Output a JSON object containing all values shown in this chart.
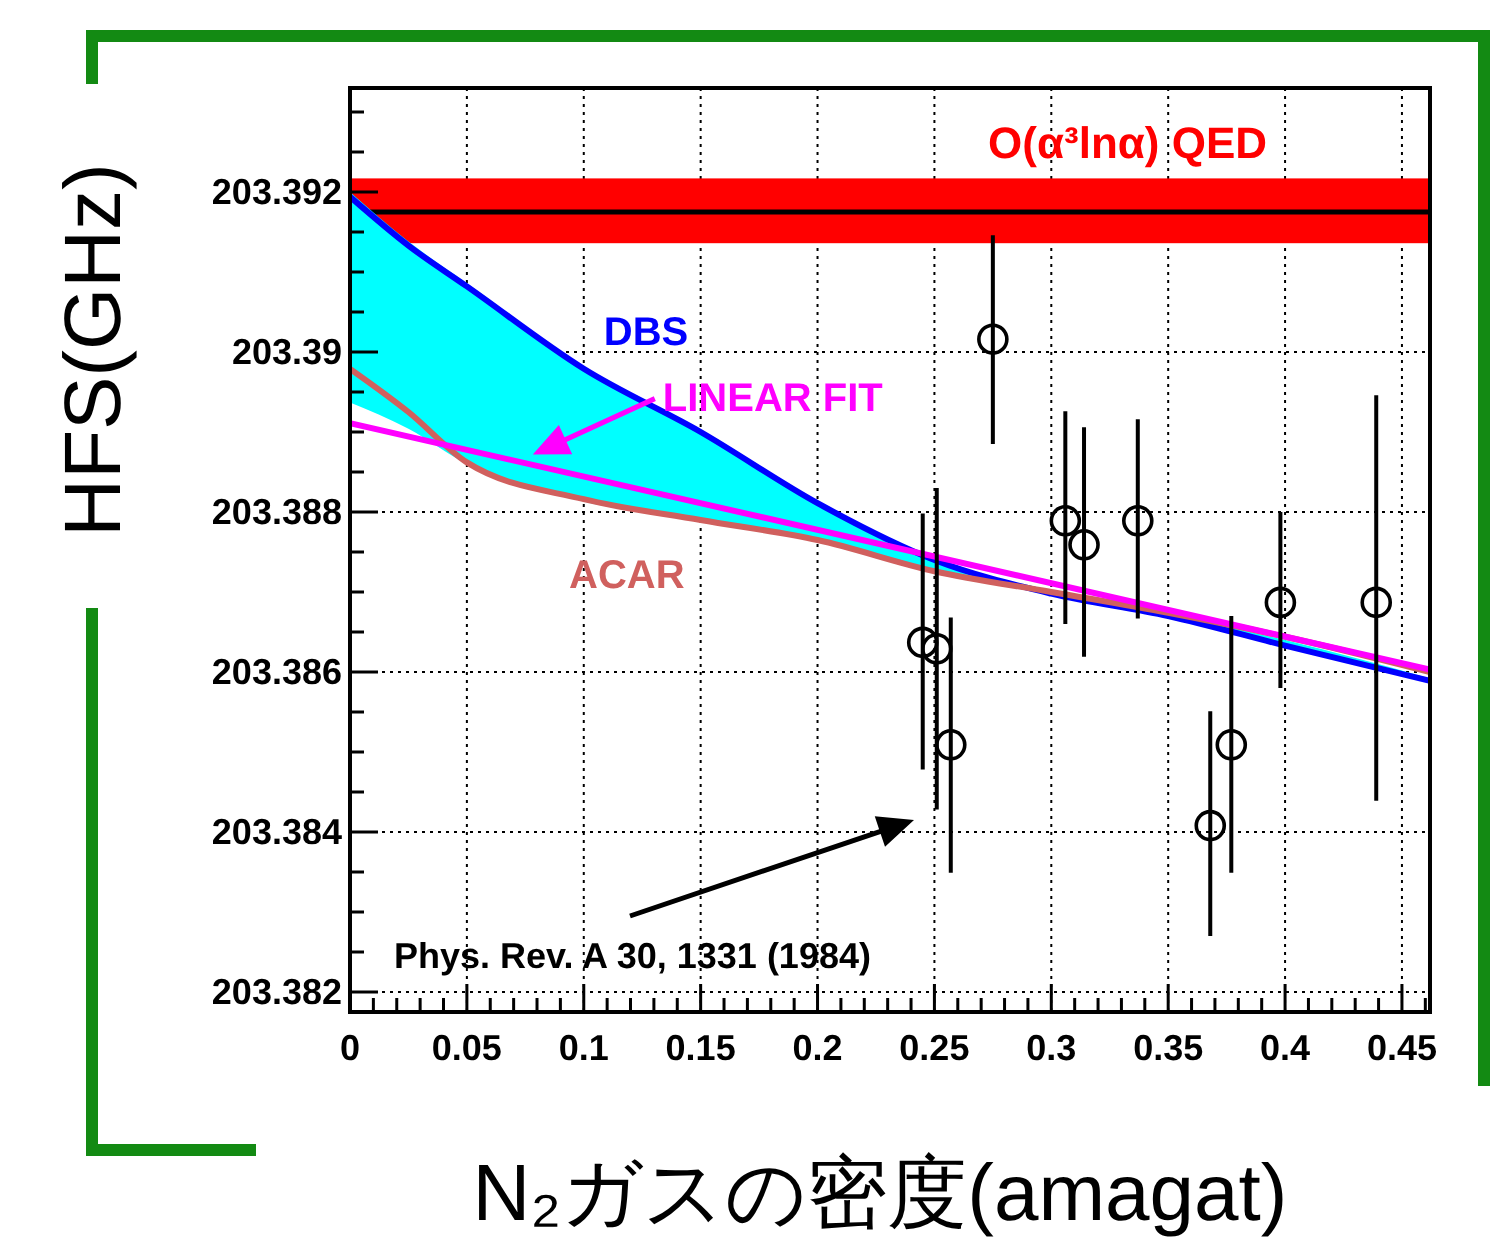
{
  "chart_data": {
    "type": "scatter",
    "xlabel": "N₂ガスの密度(amagat)",
    "ylabel": "HFS(GHz)",
    "xlim": [
      0,
      0.462
    ],
    "ylim": [
      203.38175,
      203.3933
    ],
    "xticks": [
      0,
      {
        "value": 0.01,
        "label": null
      },
      {
        "value": 0.02,
        "label": null
      },
      {
        "value": 0.03,
        "label": null
      },
      {
        "value": 0.04,
        "label": null
      },
      0.05,
      {
        "value": 0.06,
        "label": null
      },
      {
        "value": 0.07,
        "label": null
      },
      {
        "value": 0.08,
        "label": null
      },
      {
        "value": 0.09,
        "label": null
      },
      0.1,
      {
        "value": 0.11,
        "label": null
      },
      {
        "value": 0.12,
        "label": null
      },
      {
        "value": 0.13,
        "label": null
      },
      {
        "value": 0.14,
        "label": null
      },
      0.15,
      {
        "value": 0.16,
        "label": null
      },
      {
        "value": 0.17,
        "label": null
      },
      {
        "value": 0.18,
        "label": null
      },
      {
        "value": 0.19,
        "label": null
      },
      0.2,
      {
        "value": 0.21,
        "label": null
      },
      {
        "value": 0.22,
        "label": null
      },
      {
        "value": 0.23,
        "label": null
      },
      {
        "value": 0.24,
        "label": null
      },
      0.25,
      {
        "value": 0.26,
        "label": null
      },
      {
        "value": 0.27,
        "label": null
      },
      {
        "value": 0.28,
        "label": null
      },
      {
        "value": 0.29,
        "label": null
      },
      0.3,
      {
        "value": 0.31,
        "label": null
      },
      {
        "value": 0.32,
        "label": null
      },
      {
        "value": 0.33,
        "label": null
      },
      {
        "value": 0.34,
        "label": null
      },
      0.35,
      {
        "value": 0.36,
        "label": null
      },
      {
        "value": 0.37,
        "label": null
      },
      {
        "value": 0.38,
        "label": null
      },
      {
        "value": 0.39,
        "label": null
      },
      0.4,
      {
        "value": 0.41,
        "label": null
      },
      {
        "value": 0.42,
        "label": null
      },
      {
        "value": 0.43,
        "label": null
      },
      {
        "value": 0.44,
        "label": null
      },
      0.45,
      {
        "value": 0.46,
        "label": null
      }
    ],
    "yticks": [
      203.382,
      {
        "value": 203.3825,
        "label": null
      },
      {
        "value": 203.383,
        "label": null
      },
      {
        "value": 203.3835,
        "label": null
      },
      203.384,
      {
        "value": 203.3845,
        "label": null
      },
      {
        "value": 203.385,
        "label": null
      },
      {
        "value": 203.3855,
        "label": null
      },
      203.386,
      {
        "value": 203.3865,
        "label": null
      },
      {
        "value": 203.387,
        "label": null
      },
      {
        "value": 203.3875,
        "label": null
      },
      203.388,
      {
        "value": 203.3885,
        "label": null
      },
      {
        "value": 203.389,
        "label": null
      },
      {
        "value": 203.3895,
        "label": null
      },
      203.39,
      {
        "value": 203.3905,
        "label": null
      },
      {
        "value": 203.391,
        "label": null
      },
      {
        "value": 203.3915,
        "label": null
      },
      203.392,
      {
        "value": 203.3925,
        "label": null
      },
      {
        "value": 203.393,
        "label": null
      }
    ],
    "grid": true,
    "bands": [
      {
        "axis": "y",
        "from": 203.39136,
        "to": 203.39217,
        "label": "O(α³lnα) QED",
        "color": "#ff0000"
      }
    ],
    "ref_lines": [
      {
        "axis": "y",
        "value": 203.39175,
        "color": "#000000"
      }
    ],
    "series": [
      {
        "type": "line",
        "name": "DBS",
        "color": "#0000ff",
        "x": [
          0,
          0.025,
          0.05,
          0.1,
          0.15,
          0.2,
          0.25,
          0.3,
          0.35,
          0.4,
          0.462
        ],
        "values": [
          203.39194,
          203.39133,
          203.39082,
          203.38979,
          203.389,
          203.38811,
          203.3874,
          203.38698,
          203.3867,
          203.38633,
          203.38589
        ],
        "lower": [
          203.38937,
          203.38904,
          203.3886,
          203.38813,
          203.38788,
          203.38763,
          203.38724,
          203.38699,
          203.38672,
          203.3864,
          203.38592
        ],
        "upper": [
          203.392,
          203.39138,
          203.39086,
          203.38982,
          203.38903,
          203.38814,
          203.38743,
          203.387,
          203.38672,
          203.38635,
          203.38591
        ]
      },
      {
        "type": "line",
        "name": "ACAR",
        "color": "#d0605e",
        "x": [
          0,
          0.025,
          0.05,
          0.1,
          0.15,
          0.2,
          0.25,
          0.3,
          0.35,
          0.4,
          0.462
        ],
        "values": [
          203.38979,
          203.38925,
          203.38862,
          203.38816,
          203.3879,
          203.38765,
          203.38726,
          203.387,
          203.38674,
          203.38644,
          203.386
        ]
      },
      {
        "type": "line",
        "name": "LINEAR FIT",
        "color": "#ff00ff",
        "x": [
          0,
          0.462
        ],
        "values": [
          203.38911,
          203.38603
        ]
      },
      {
        "color": "#000000",
        "marker": "circle",
        "x": [
          0.245,
          0.251,
          0.257,
          0.275,
          0.306,
          0.314,
          0.337,
          0.368,
          0.377,
          0.398,
          0.439
        ],
        "values": [
          203.38637,
          203.38629,
          203.38509,
          203.39016,
          203.38789,
          203.38759,
          203.38789,
          203.38408,
          203.38509,
          203.38687,
          203.38687
        ],
        "errors": [
          [
            203.38478,
            203.38798
          ],
          [
            203.38428,
            203.3883
          ],
          [
            203.38349,
            203.38668
          ],
          [
            203.38885,
            203.39146
          ],
          [
            203.3866,
            203.38926
          ],
          [
            203.38619,
            203.38906
          ],
          [
            203.38667,
            203.38916
          ],
          [
            203.3827,
            203.38551
          ],
          [
            203.38349,
            203.3867
          ],
          [
            203.3858,
            203.388
          ],
          [
            203.38439,
            203.38946
          ]
        ]
      }
    ],
    "annotations": [
      "Phys. Rev. A 30, 1331 (1984)"
    ]
  }
}
